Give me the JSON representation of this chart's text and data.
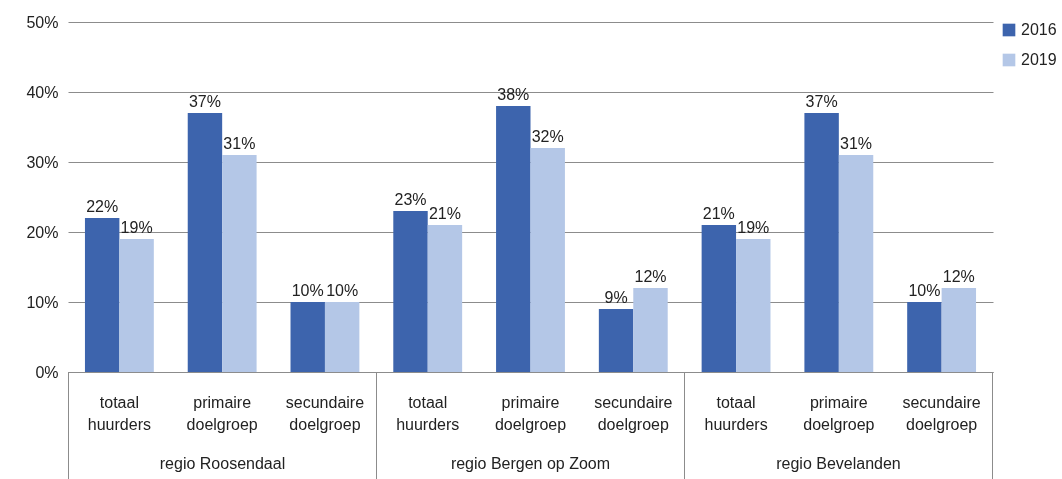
{
  "chart_data": {
    "type": "bar",
    "categories": [
      "totaal huurders",
      "primaire doelgroep",
      "secundaire doelgroep",
      "totaal huurders",
      "primaire doelgroep",
      "secundaire doelgroep",
      "totaal huurders",
      "primaire doelgroep",
      "secundaire doelgroep"
    ],
    "series": [
      {
        "name": "2016",
        "color": "#3d64ad",
        "values": [
          22,
          37,
          10,
          23,
          38,
          9,
          21,
          37,
          10
        ],
        "value_labels": [
          "22%",
          "37%",
          "10%",
          "23%",
          "38%",
          "9%",
          "21%",
          "37%",
          "10%"
        ]
      },
      {
        "name": "2019",
        "color": "#b4c7e7",
        "values": [
          19,
          31,
          10,
          21,
          32,
          12,
          19,
          31,
          12
        ],
        "value_labels": [
          "19%",
          "31%",
          "10%",
          "21%",
          "32%",
          "12%",
          "19%",
          "31%",
          "12%"
        ]
      }
    ],
    "annotations": [
      "regio Roosendaal",
      "regio Bergen op Zoom",
      "regio Bevelanden"
    ],
    "ylim": [
      0,
      50
    ],
    "yticks": [
      {
        "value": 0,
        "label": "0%"
      },
      {
        "value": 10,
        "label": "10%"
      },
      {
        "value": 20,
        "label": "20%"
      },
      {
        "value": 30,
        "label": "30%"
      },
      {
        "value": 40,
        "label": "40%"
      },
      {
        "value": 50,
        "label": "50%"
      }
    ],
    "grid": "y",
    "legend": "top right"
  }
}
